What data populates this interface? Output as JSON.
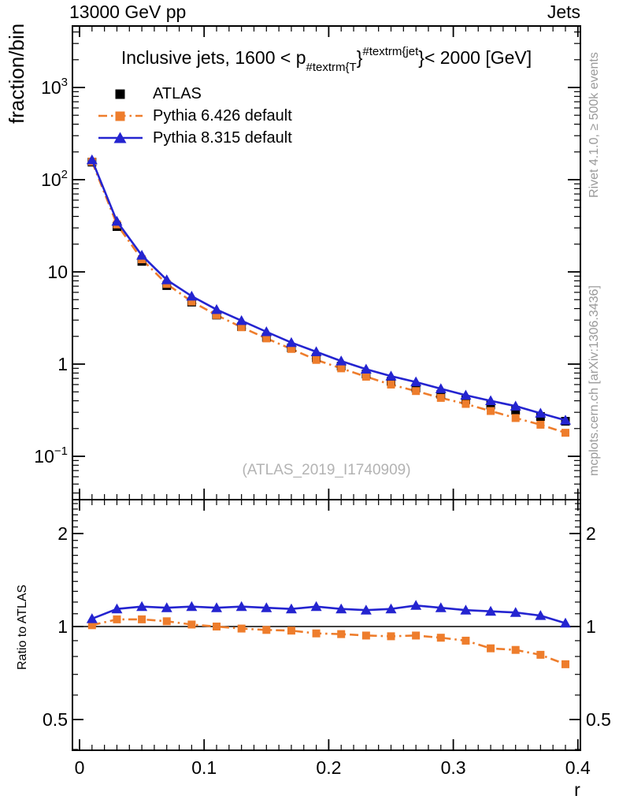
{
  "header": {
    "left": "13000 GeV pp",
    "right": "Jets"
  },
  "title": {
    "pre": "Inclusive jets, 1600 < p",
    "sub": "#textrm{T",
    "brace1": "}",
    "sup": "#textrm{jet",
    "brace2": "}",
    "post": " < 2000 [GeV]"
  },
  "legend": [
    {
      "label": "ATLAS",
      "marker": "square",
      "line": "none",
      "color": "#000000"
    },
    {
      "label": "Pythia 6.426 default",
      "marker": "square",
      "line": "dashdot",
      "color": "#ee7d2c"
    },
    {
      "label": "Pythia 8.315 default",
      "marker": "triangle",
      "line": "solid",
      "color": "#2424d0"
    }
  ],
  "watermark": "(ATLAS_2019_I1740909)",
  "side_notes": {
    "top": "Rivet 4.1.0, ≥ 500k events",
    "bottom": "mcplots.cern.ch [arXiv:1306.3436]"
  },
  "axes": {
    "main_ylabel": "fraction/bin",
    "ratio_ylabel": "Ratio to ATLAS",
    "xlabel": "r",
    "x_major_ticks": [
      0,
      0.1,
      0.2,
      0.3,
      0.4
    ],
    "x_tick_labels": [
      "0",
      "0.1",
      "0.2",
      "0.3",
      "0.4"
    ],
    "main_y_tick_labels": [
      {
        "value": 1000,
        "base": "10",
        "exp": "3"
      },
      {
        "value": 100,
        "base": "10",
        "exp": "2"
      },
      {
        "value": 10,
        "base": "10",
        "exp": ""
      },
      {
        "value": 1,
        "base": "1",
        "exp": ""
      },
      {
        "value": 0.1,
        "base": "10",
        "exp": "−1"
      }
    ],
    "ratio_y_ticks": [
      {
        "value": 2,
        "label": "2"
      },
      {
        "value": 1,
        "label": "1"
      },
      {
        "value": 0.5,
        "label": "0.5"
      }
    ]
  },
  "colors": {
    "atlas": "#000000",
    "pythia6": "#ee7d2c",
    "pythia8": "#2424d0",
    "frame": "#000000",
    "gray_text": "#9a9a9a",
    "watermark": "#b3b3b3"
  },
  "chart_data": [
    {
      "type": "line",
      "panel": "main",
      "title": "Inclusive jets, 1600 < p_{#textrm{T}}^{#textrm{jet}} < 2000 [GeV]",
      "xlabel": "r",
      "ylabel": "fraction/bin",
      "yscale": "log",
      "xlim": [
        -0.006,
        0.402
      ],
      "ylim": [
        0.033,
        4600
      ],
      "x": [
        0.01,
        0.03,
        0.05,
        0.07,
        0.09,
        0.11,
        0.13,
        0.15,
        0.17,
        0.19,
        0.21,
        0.23,
        0.25,
        0.27,
        0.29,
        0.31,
        0.33,
        0.35,
        0.37,
        0.39
      ],
      "series": [
        {
          "name": "ATLAS",
          "values": [
            155,
            31,
            13,
            7.1,
            4.7,
            3.4,
            2.55,
            1.95,
            1.5,
            1.17,
            0.95,
            0.78,
            0.65,
            0.55,
            0.47,
            0.41,
            0.36,
            0.315,
            0.27,
            0.24
          ]
        },
        {
          "name": "Pythia 6.426 default",
          "values": [
            157,
            32.7,
            13.7,
            7.4,
            4.77,
            3.4,
            2.51,
            1.9,
            1.46,
            1.11,
            0.9,
            0.73,
            0.6,
            0.51,
            0.43,
            0.37,
            0.31,
            0.26,
            0.22,
            0.18
          ]
        },
        {
          "name": "Pythia 8.315 default",
          "values": [
            164,
            35.3,
            15.1,
            8.2,
            5.45,
            3.9,
            2.96,
            2.24,
            1.71,
            1.36,
            1.08,
            0.88,
            0.74,
            0.64,
            0.54,
            0.46,
            0.4,
            0.35,
            0.293,
            0.246
          ]
        }
      ]
    },
    {
      "type": "line",
      "panel": "ratio",
      "ylabel": "Ratio to ATLAS",
      "yscale": "log",
      "ylim": [
        0.39,
        2.56
      ],
      "x": [
        0.01,
        0.03,
        0.05,
        0.07,
        0.09,
        0.11,
        0.13,
        0.15,
        0.17,
        0.19,
        0.21,
        0.23,
        0.25,
        0.27,
        0.29,
        0.31,
        0.33,
        0.35,
        0.37,
        0.39
      ],
      "series": [
        {
          "name": "Pythia 6.426 default",
          "values": [
            1.01,
            1.055,
            1.055,
            1.04,
            1.015,
            1.0,
            0.985,
            0.975,
            0.97,
            0.95,
            0.945,
            0.935,
            0.93,
            0.935,
            0.92,
            0.9,
            0.85,
            0.84,
            0.81,
            0.755
          ]
        },
        {
          "name": "Pythia 8.315 default",
          "values": [
            1.06,
            1.14,
            1.16,
            1.15,
            1.16,
            1.15,
            1.16,
            1.15,
            1.14,
            1.16,
            1.14,
            1.13,
            1.14,
            1.17,
            1.15,
            1.13,
            1.12,
            1.11,
            1.085,
            1.025
          ]
        }
      ]
    }
  ]
}
